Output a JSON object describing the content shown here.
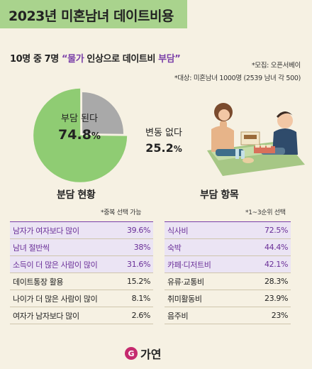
{
  "title": "2023년 미혼남녀 데이트비용",
  "headline": {
    "prefix": "10명 중 7명 ",
    "open_quote": "“",
    "highlight1": "물가",
    "middle": " 인상으로 데이트비 ",
    "highlight2": "부담",
    "close_quote": "”"
  },
  "notes": {
    "survey": "*모집: 오픈서베이",
    "target": "*대상: 미혼남녀 1000명 (2539 남녀 각 500)"
  },
  "chart_data": [
    {
      "type": "pie",
      "slices": [
        {
          "label": "부담 된다",
          "value": 74.8,
          "display": "74.8",
          "color": "#8fcc73"
        },
        {
          "label": "변동 없다",
          "value": 25.2,
          "display": "25.2",
          "color": "#a9a9a9"
        }
      ],
      "unit": "%"
    },
    {
      "type": "table",
      "title": "분담 현황",
      "note": "*중복 선택 가능",
      "rows": [
        {
          "label": "남자가 여자보다 많이",
          "value": "39.6%",
          "highlight": true
        },
        {
          "label": "남녀 절반씩",
          "value": "38%",
          "highlight": true
        },
        {
          "label": "소득이 더 많은 사람이 많이",
          "value": "31.6%",
          "highlight": true
        },
        {
          "label": "데이트통장 활용",
          "value": "15.2%",
          "highlight": false
        },
        {
          "label": "나이가 더 많은 사람이 많이",
          "value": "8.1%",
          "highlight": false
        },
        {
          "label": "여자가 남자보다 많이",
          "value": "2.6%",
          "highlight": false
        }
      ]
    },
    {
      "type": "table",
      "title": "부담 항목",
      "note": "*1~3순위 선택",
      "rows": [
        {
          "label": "식사비",
          "value": "72.5%",
          "highlight": true
        },
        {
          "label": "숙박",
          "value": "44.4%",
          "highlight": true
        },
        {
          "label": "카페·디저트비",
          "value": "42.1%",
          "highlight": true
        },
        {
          "label": "유류·교통비",
          "value": "28.3%",
          "highlight": false
        },
        {
          "label": "취미활동비",
          "value": "23.9%",
          "highlight": false
        },
        {
          "label": "음주비",
          "value": "23%",
          "highlight": false
        }
      ]
    }
  ],
  "colors": {
    "accent_purple": "#7a3fa8",
    "green": "#8fcc73",
    "gray": "#a9a9a9",
    "background": "#f6f1e3",
    "title_band": "#a9d38d"
  },
  "logo": {
    "mark": "G",
    "text": "가연"
  }
}
